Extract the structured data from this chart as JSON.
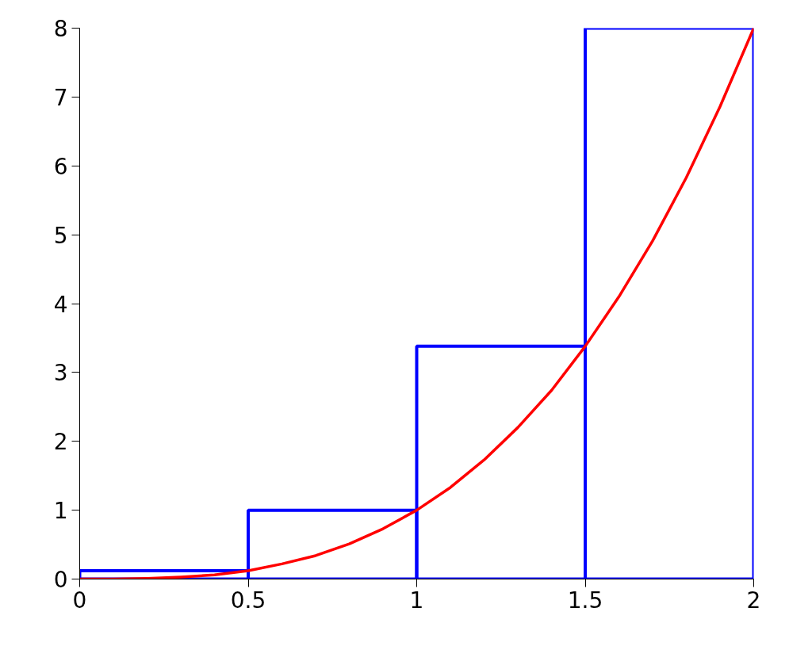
{
  "chart_data": {
    "type": "histogram",
    "xlim": [
      0,
      2
    ],
    "ylim": [
      0,
      8
    ],
    "xticks": [
      0,
      0.5,
      1,
      1.5,
      2
    ],
    "yticks": [
      0,
      1,
      2,
      3,
      4,
      5,
      6,
      7,
      8
    ],
    "series": [
      {
        "color": "#0000ff",
        "bins": [
          0,
          0.5,
          1,
          1.5,
          2
        ],
        "values": [
          0.12,
          1,
          3.38,
          8
        ]
      },
      {
        "type": "line",
        "color": "#ff0000",
        "x": [
          0,
          0.1,
          0.2,
          0.3,
          0.4,
          0.5,
          0.6,
          0.7,
          0.8,
          0.9,
          1,
          1.1,
          1.2,
          1.3,
          1.4,
          1.5,
          1.6,
          1.7,
          1.8,
          1.9,
          2
        ],
        "values": [
          0,
          0,
          0.01,
          0.03,
          0.06,
          0.12,
          0.22,
          0.34,
          0.51,
          0.73,
          1,
          1.33,
          1.73,
          2.2,
          2.74,
          3.38,
          4.1,
          4.91,
          5.83,
          6.86,
          8
        ]
      }
    ]
  }
}
